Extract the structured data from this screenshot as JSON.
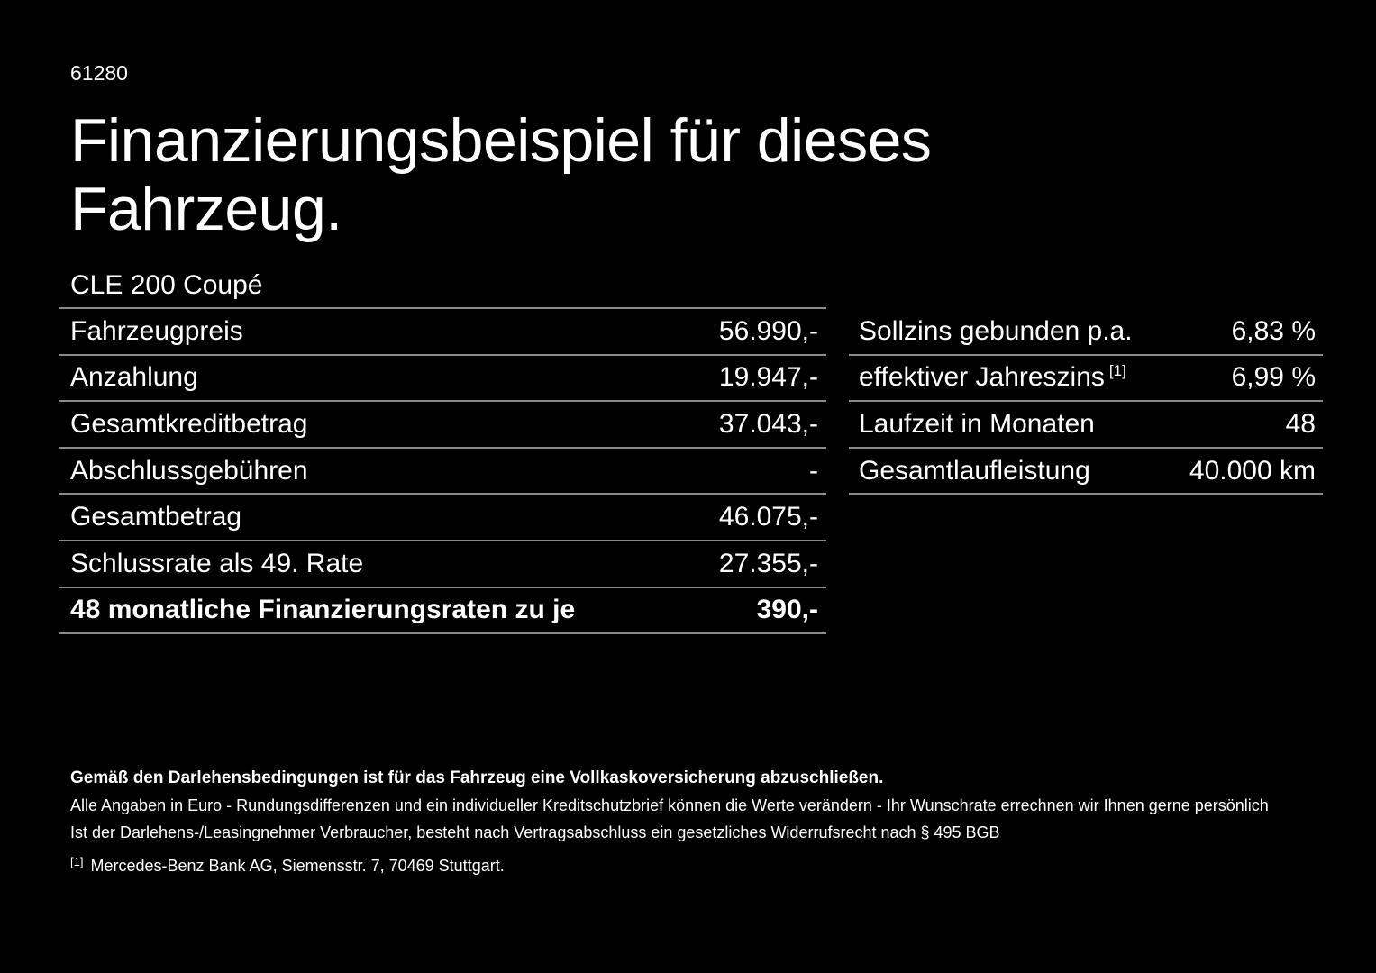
{
  "header": {
    "doc_number": "61280",
    "title_line1": "Finanzierungsbeispiel für dieses",
    "title_line2": "Fahrzeug."
  },
  "vehicle": {
    "model": "CLE 200 Coupé"
  },
  "financing_table": {
    "rows": [
      {
        "label": "Fahrzeugpreis",
        "value": "56.990,-"
      },
      {
        "label": "Anzahlung",
        "value": "19.947,-"
      },
      {
        "label": "Gesamtkreditbetrag",
        "value": "37.043,-"
      },
      {
        "label": "Abschlussgebühren",
        "value": "-"
      },
      {
        "label": "Gesamtbetrag",
        "value": "46.075,-"
      },
      {
        "label": "Schlussrate als 49. Rate",
        "value": "27.355,-"
      },
      {
        "label": "48 monatliche Finanzierungsraten zu je",
        "value": "390,-"
      }
    ]
  },
  "conditions_table": {
    "rows": [
      {
        "label": "Sollzins gebunden p.a.",
        "value": "6,83 %"
      },
      {
        "label": "effektiver Jahreszins",
        "footnote_marker": "[1]",
        "value": "6,99 %"
      },
      {
        "label": "Laufzeit in Monaten",
        "value": "48"
      },
      {
        "label": "Gesamtlaufleistung",
        "value": "40.000 km"
      }
    ]
  },
  "footer": {
    "bold_line": "Gemäß den Darlehensbedingungen ist für das Fahrzeug eine Vollkaskoversicherung abzuschließen.",
    "line2": "Alle Angaben in Euro - Rundungsdifferenzen und ein individueller Kreditschutzbrief können die Werte verändern - Ihr Wunschrate errechnen wir Ihnen gerne persönlich",
    "line3": "Ist der Darlehens-/Leasingnehmer Verbraucher, besteht nach Vertragsabschluss ein gesetzliches Widerrufsrecht nach § 495 BGB",
    "footnote_marker": "[1]",
    "footnote_text": "Mercedes-Benz Bank AG, Siemensstr. 7, 70469 Stuttgart."
  },
  "colors": {
    "background": "#000000",
    "text": "#ffffff",
    "divider": "#8a8a8a"
  }
}
